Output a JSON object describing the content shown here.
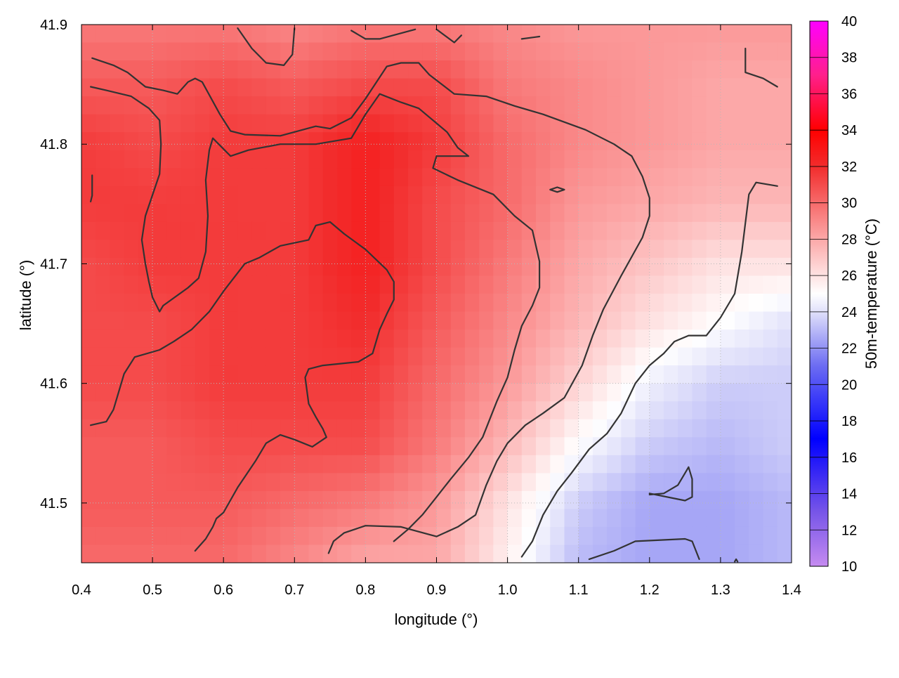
{
  "chart_data": {
    "type": "heatmap",
    "title": "",
    "xlabel": "longitude (°)",
    "ylabel": "latitude (°)",
    "colorbar_label": "50m-temperature (°C)",
    "xlim": [
      0.4,
      1.4
    ],
    "ylim": [
      41.45,
      41.9
    ],
    "x_ticks": [
      "0.4",
      "0.5",
      "0.6",
      "0.7",
      "0.8",
      "0.9",
      "1.0",
      "1.1",
      "1.2",
      "1.3",
      "1.4"
    ],
    "y_ticks": [
      "41.5",
      "41.6",
      "41.7",
      "41.8",
      "41.9"
    ],
    "colorbar_range": [
      10,
      40
    ],
    "colorbar_ticks": [
      "10",
      "12",
      "14",
      "16",
      "18",
      "20",
      "22",
      "24",
      "26",
      "28",
      "30",
      "32",
      "34",
      "36",
      "38",
      "40"
    ],
    "colormap": [
      {
        "value": 10,
        "color": "#c58bf0"
      },
      {
        "value": 13,
        "color": "#7755e8"
      },
      {
        "value": 17,
        "color": "#0000ff"
      },
      {
        "value": 21,
        "color": "#6b6bf2"
      },
      {
        "value": 24,
        "color": "#e0e0fa"
      },
      {
        "value": 25,
        "color": "#ffffff"
      },
      {
        "value": 28,
        "color": "#fca8a8"
      },
      {
        "value": 32,
        "color": "#f22c2c"
      },
      {
        "value": 34,
        "color": "#ff0000"
      },
      {
        "value": 37,
        "color": "#ff1f8a"
      },
      {
        "value": 40,
        "color": "#ff00ff"
      }
    ],
    "grid": true,
    "temperature_field": {
      "x": [
        0.4,
        0.5,
        0.6,
        0.7,
        0.8,
        0.9,
        1.0,
        1.1,
        1.2,
        1.3,
        1.4
      ],
      "y": [
        41.9,
        41.85,
        41.8,
        41.75,
        41.7,
        41.65,
        41.6,
        41.55,
        41.5,
        41.45
      ],
      "z": [
        [
          29.5,
          29.5,
          29.5,
          29,
          29.5,
          29.5,
          29,
          28.5,
          28.5,
          28.5,
          28.5
        ],
        [
          30.5,
          30.5,
          31,
          30.5,
          31,
          31,
          29.5,
          29,
          28.5,
          28,
          28
        ],
        [
          31.5,
          31,
          31.5,
          31.5,
          32.5,
          31.5,
          30,
          29,
          28.5,
          28,
          28
        ],
        [
          31.5,
          31.5,
          31.5,
          31.5,
          32.5,
          31,
          30,
          28.5,
          28,
          27.5,
          27.5
        ],
        [
          31,
          31.5,
          31.5,
          31.5,
          32.5,
          31,
          29.5,
          28,
          27,
          26,
          26
        ],
        [
          31,
          31,
          31.5,
          31.5,
          32,
          30.5,
          29,
          27.5,
          26,
          25,
          24
        ],
        [
          31,
          31,
          31.5,
          31.5,
          31.5,
          30,
          28.5,
          26.5,
          24.5,
          23.5,
          23.5
        ],
        [
          30.5,
          30.5,
          31,
          31,
          31,
          29.5,
          27.5,
          25,
          23.5,
          23,
          23.5
        ],
        [
          30.5,
          30.5,
          30.5,
          30,
          29.5,
          28.5,
          26,
          23.5,
          22.5,
          22.5,
          23
        ],
        [
          30,
          30,
          30,
          29,
          28,
          28,
          25.5,
          23,
          22.5,
          22.5,
          23
        ]
      ]
    },
    "contour_lines": [
      [
        [
          0.415,
          41.872
        ],
        [
          0.445,
          41.866
        ],
        [
          0.465,
          41.86
        ],
        [
          0.49,
          41.848
        ],
        [
          0.515,
          41.845
        ],
        [
          0.535,
          41.842
        ],
        [
          0.55,
          41.852
        ],
        [
          0.56,
          41.855
        ],
        [
          0.57,
          41.852
        ],
        [
          0.595,
          41.825
        ],
        [
          0.61,
          41.811
        ],
        [
          0.63,
          41.808
        ],
        [
          0.68,
          41.807
        ],
        [
          0.73,
          41.815
        ],
        [
          0.75,
          41.813
        ],
        [
          0.78,
          41.822
        ],
        [
          0.8,
          41.838
        ],
        [
          0.83,
          41.865
        ],
        [
          0.85,
          41.868
        ],
        [
          0.875,
          41.868
        ],
        [
          0.89,
          41.858
        ],
        [
          0.925,
          41.842
        ],
        [
          0.97,
          41.84
        ],
        [
          1.01,
          41.832
        ],
        [
          1.05,
          41.825
        ],
        [
          1.11,
          41.812
        ],
        [
          1.15,
          41.8
        ],
        [
          1.175,
          41.79
        ],
        [
          1.19,
          41.773
        ],
        [
          1.2,
          41.755
        ],
        [
          1.2,
          41.74
        ],
        [
          1.19,
          41.722
        ],
        [
          1.16,
          41.69
        ],
        [
          1.135,
          41.662
        ],
        [
          1.12,
          41.64
        ],
        [
          1.105,
          41.615
        ],
        [
          1.08,
          41.588
        ],
        [
          1.05,
          41.575
        ],
        [
          1.025,
          41.565
        ],
        [
          1.0,
          41.55
        ],
        [
          0.985,
          41.535
        ],
        [
          0.97,
          41.515
        ],
        [
          0.955,
          41.49
        ],
        [
          0.93,
          41.48
        ],
        [
          0.9,
          41.472
        ],
        [
          0.85,
          41.48
        ],
        [
          0.8,
          41.481
        ],
        [
          0.77,
          41.475
        ],
        [
          0.755,
          41.468
        ],
        [
          0.748,
          41.458
        ]
      ],
      [
        [
          0.413,
          41.848
        ],
        [
          0.435,
          41.845
        ],
        [
          0.47,
          41.84
        ],
        [
          0.495,
          41.83
        ],
        [
          0.51,
          41.82
        ],
        [
          0.512,
          41.8
        ],
        [
          0.51,
          41.775
        ],
        [
          0.49,
          41.74
        ],
        [
          0.485,
          41.72
        ],
        [
          0.49,
          41.7
        ],
        [
          0.495,
          41.685
        ],
        [
          0.5,
          41.672
        ],
        [
          0.51,
          41.66
        ],
        [
          0.515,
          41.665
        ],
        [
          0.55,
          41.68
        ],
        [
          0.565,
          41.688
        ],
        [
          0.575,
          41.71
        ],
        [
          0.578,
          41.74
        ],
        [
          0.575,
          41.77
        ],
        [
          0.58,
          41.795
        ],
        [
          0.585,
          41.805
        ],
        [
          0.61,
          41.79
        ],
        [
          0.635,
          41.795
        ],
        [
          0.68,
          41.8
        ],
        [
          0.73,
          41.8
        ],
        [
          0.78,
          41.805
        ],
        [
          0.8,
          41.825
        ],
        [
          0.82,
          41.842
        ],
        [
          0.85,
          41.835
        ],
        [
          0.875,
          41.83
        ],
        [
          0.915,
          41.81
        ],
        [
          0.93,
          41.797
        ],
        [
          0.945,
          41.79
        ],
        [
          0.9,
          41.79
        ],
        [
          0.895,
          41.78
        ],
        [
          0.93,
          41.77
        ],
        [
          0.98,
          41.758
        ],
        [
          1.01,
          41.74
        ],
        [
          1.035,
          41.728
        ],
        [
          1.045,
          41.702
        ],
        [
          1.045,
          41.68
        ],
        [
          1.035,
          41.665
        ],
        [
          1.02,
          41.648
        ],
        [
          1.01,
          41.628
        ],
        [
          1.0,
          41.605
        ],
        [
          0.985,
          41.585
        ],
        [
          0.965,
          41.555
        ],
        [
          0.945,
          41.538
        ],
        [
          0.92,
          41.52
        ],
        [
          0.9,
          41.505
        ],
        [
          0.88,
          41.49
        ],
        [
          0.86,
          41.478
        ],
        [
          0.84,
          41.468
        ]
      ],
      [
        [
          0.413,
          41.565
        ],
        [
          0.435,
          41.568
        ],
        [
          0.445,
          41.578
        ],
        [
          0.46,
          41.608
        ],
        [
          0.475,
          41.622
        ],
        [
          0.51,
          41.628
        ],
        [
          0.53,
          41.635
        ],
        [
          0.555,
          41.645
        ],
        [
          0.58,
          41.66
        ],
        [
          0.6,
          41.677
        ],
        [
          0.63,
          41.7
        ],
        [
          0.65,
          41.705
        ],
        [
          0.68,
          41.715
        ],
        [
          0.72,
          41.72
        ],
        [
          0.73,
          41.732
        ],
        [
          0.75,
          41.735
        ],
        [
          0.77,
          41.725
        ],
        [
          0.8,
          41.712
        ],
        [
          0.83,
          41.695
        ],
        [
          0.84,
          41.685
        ],
        [
          0.84,
          41.67
        ],
        [
          0.83,
          41.658
        ],
        [
          0.82,
          41.645
        ],
        [
          0.81,
          41.625
        ],
        [
          0.79,
          41.618
        ],
        [
          0.74,
          41.615
        ],
        [
          0.72,
          41.612
        ],
        [
          0.715,
          41.605
        ],
        [
          0.72,
          41.583
        ],
        [
          0.73,
          41.572
        ],
        [
          0.74,
          41.562
        ],
        [
          0.745,
          41.555
        ],
        [
          0.725,
          41.547
        ],
        [
          0.7,
          41.553
        ],
        [
          0.68,
          41.557
        ],
        [
          0.66,
          41.55
        ],
        [
          0.645,
          41.535
        ],
        [
          0.62,
          41.513
        ],
        [
          0.6,
          41.492
        ],
        [
          0.59,
          41.487
        ],
        [
          0.585,
          41.48
        ],
        [
          0.575,
          41.47
        ],
        [
          0.56,
          41.46
        ]
      ],
      [
        [
          0.62,
          41.897
        ],
        [
          0.64,
          41.88
        ],
        [
          0.66,
          41.868
        ],
        [
          0.685,
          41.866
        ],
        [
          0.697,
          41.875
        ],
        [
          0.7,
          41.897
        ]
      ],
      [
        [
          0.78,
          41.895
        ],
        [
          0.8,
          41.888
        ],
        [
          0.82,
          41.888
        ],
        [
          0.87,
          41.896
        ]
      ],
      [
        [
          0.9,
          41.896
        ],
        [
          0.925,
          41.885
        ],
        [
          0.935,
          41.891
        ]
      ],
      [
        [
          1.02,
          41.888
        ],
        [
          1.045,
          41.89
        ]
      ],
      [
        [
          1.335,
          41.88
        ],
        [
          1.335,
          41.86
        ],
        [
          1.36,
          41.855
        ],
        [
          1.38,
          41.848
        ]
      ],
      [
        [
          0.415,
          41.774
        ],
        [
          0.415,
          41.757
        ],
        [
          0.413,
          41.752
        ]
      ],
      [
        [
          1.06,
          41.762
        ],
        [
          1.07,
          41.764
        ],
        [
          1.08,
          41.762
        ],
        [
          1.07,
          41.76
        ],
        [
          1.06,
          41.762
        ]
      ],
      [
        [
          1.02,
          41.455
        ],
        [
          1.035,
          41.468
        ],
        [
          1.05,
          41.49
        ],
        [
          1.07,
          41.51
        ],
        [
          1.09,
          41.525
        ],
        [
          1.115,
          41.545
        ],
        [
          1.14,
          41.558
        ],
        [
          1.16,
          41.575
        ],
        [
          1.18,
          41.6
        ],
        [
          1.2,
          41.615
        ],
        [
          1.22,
          41.625
        ],
        [
          1.235,
          41.635
        ],
        [
          1.255,
          41.64
        ],
        [
          1.28,
          41.64
        ],
        [
          1.3,
          41.655
        ],
        [
          1.32,
          41.675
        ],
        [
          1.33,
          41.71
        ],
        [
          1.34,
          41.758
        ],
        [
          1.35,
          41.768
        ],
        [
          1.38,
          41.765
        ]
      ],
      [
        [
          1.2,
          41.507
        ],
        [
          1.22,
          41.508
        ],
        [
          1.24,
          41.515
        ],
        [
          1.25,
          41.525
        ],
        [
          1.255,
          41.53
        ],
        [
          1.26,
          41.52
        ],
        [
          1.26,
          41.505
        ],
        [
          1.25,
          41.502
        ],
        [
          1.2,
          41.508
        ]
      ],
      [
        [
          1.115,
          41.453
        ],
        [
          1.15,
          41.46
        ],
        [
          1.18,
          41.468
        ],
        [
          1.25,
          41.47
        ],
        [
          1.26,
          41.468
        ],
        [
          1.27,
          41.453
        ]
      ],
      [
        [
          1.32,
          41.451
        ],
        [
          1.322,
          41.453
        ],
        [
          1.324,
          41.451
        ]
      ]
    ]
  }
}
